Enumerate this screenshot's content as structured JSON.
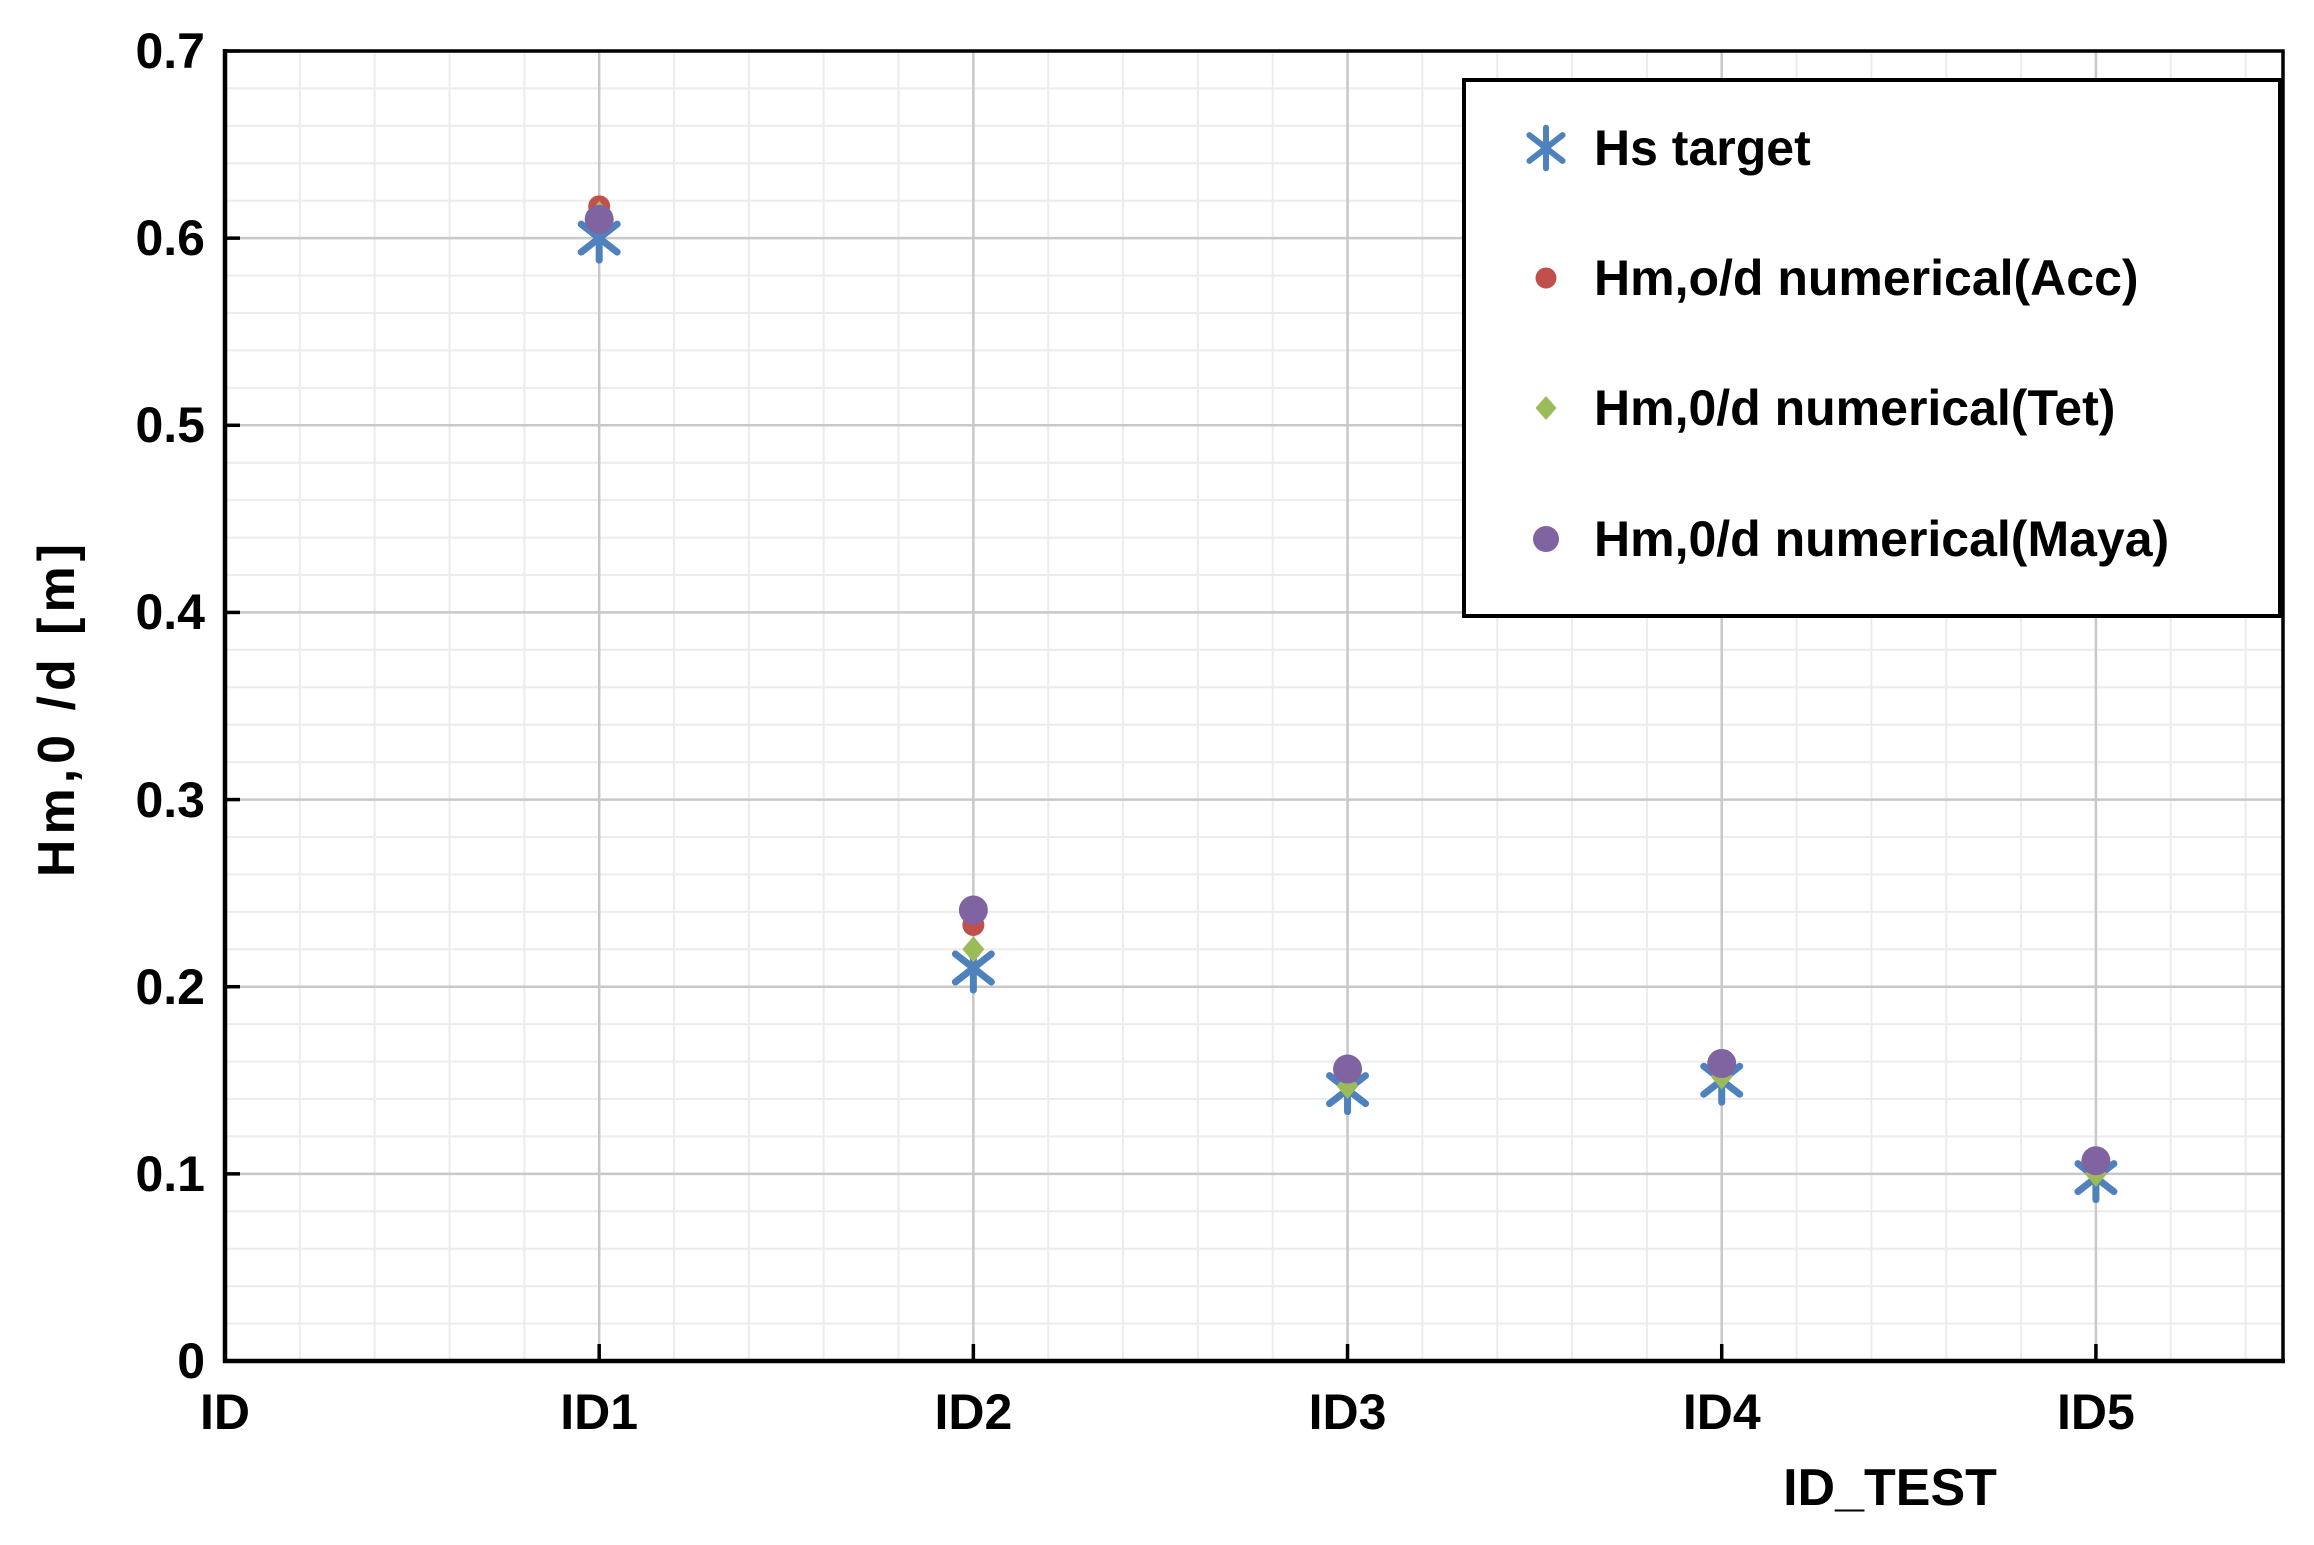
{
  "chart_data": {
    "type": "scatter",
    "title": "",
    "xlabel": "ID_TEST",
    "ylabel": "Hm,0 /d [m]",
    "x_categories": [
      "ID",
      "ID1",
      "ID2",
      "ID3",
      "ID4",
      "ID5"
    ],
    "y_tick_labels": [
      "0",
      "0.1",
      "0.2",
      "0.3",
      "0.4",
      "0.5",
      "0.6",
      "0.7"
    ],
    "ylim": [
      0,
      0.7
    ],
    "y_major_step": 0.1,
    "y_minor_step": 0.02,
    "x_range_categories": [
      0,
      5.5
    ],
    "x_minor_divisions_per_category": 5,
    "grid": "major and minor, both axes",
    "legend_position": "top-right inside plot, white box with black border",
    "series": [
      {
        "name": "Hs target",
        "marker": "star6",
        "color": "#4f81bd",
        "x": [
          1,
          2,
          3,
          4,
          5
        ],
        "values": [
          0.6,
          0.21,
          0.145,
          0.15,
          0.098
        ]
      },
      {
        "name": "Hm,o/d numerical(Acc)",
        "marker": "circle-small",
        "color": "#c0504d",
        "x": [
          1,
          2,
          3,
          4,
          5
        ],
        "values": [
          0.617,
          0.233,
          0.155,
          0.158,
          0.106
        ]
      },
      {
        "name": "Hm,0/d numerical(Tet)",
        "marker": "diamond",
        "color": "#9bbb59",
        "x": [
          1,
          2,
          3,
          4,
          5
        ],
        "values": [
          0.613,
          0.22,
          0.147,
          0.152,
          0.1
        ]
      },
      {
        "name": "Hm,0/d numerical(Maya)",
        "marker": "circle",
        "color": "#8064a2",
        "x": [
          1,
          2,
          3,
          4,
          5
        ],
        "values": [
          0.61,
          0.241,
          0.156,
          0.159,
          0.107
        ]
      }
    ],
    "colors": {
      "background": "#ffffff",
      "grid_minor": "#ececec",
      "grid_major": "#c8c8c8",
      "axis": "#000000",
      "text": "#000000"
    }
  }
}
